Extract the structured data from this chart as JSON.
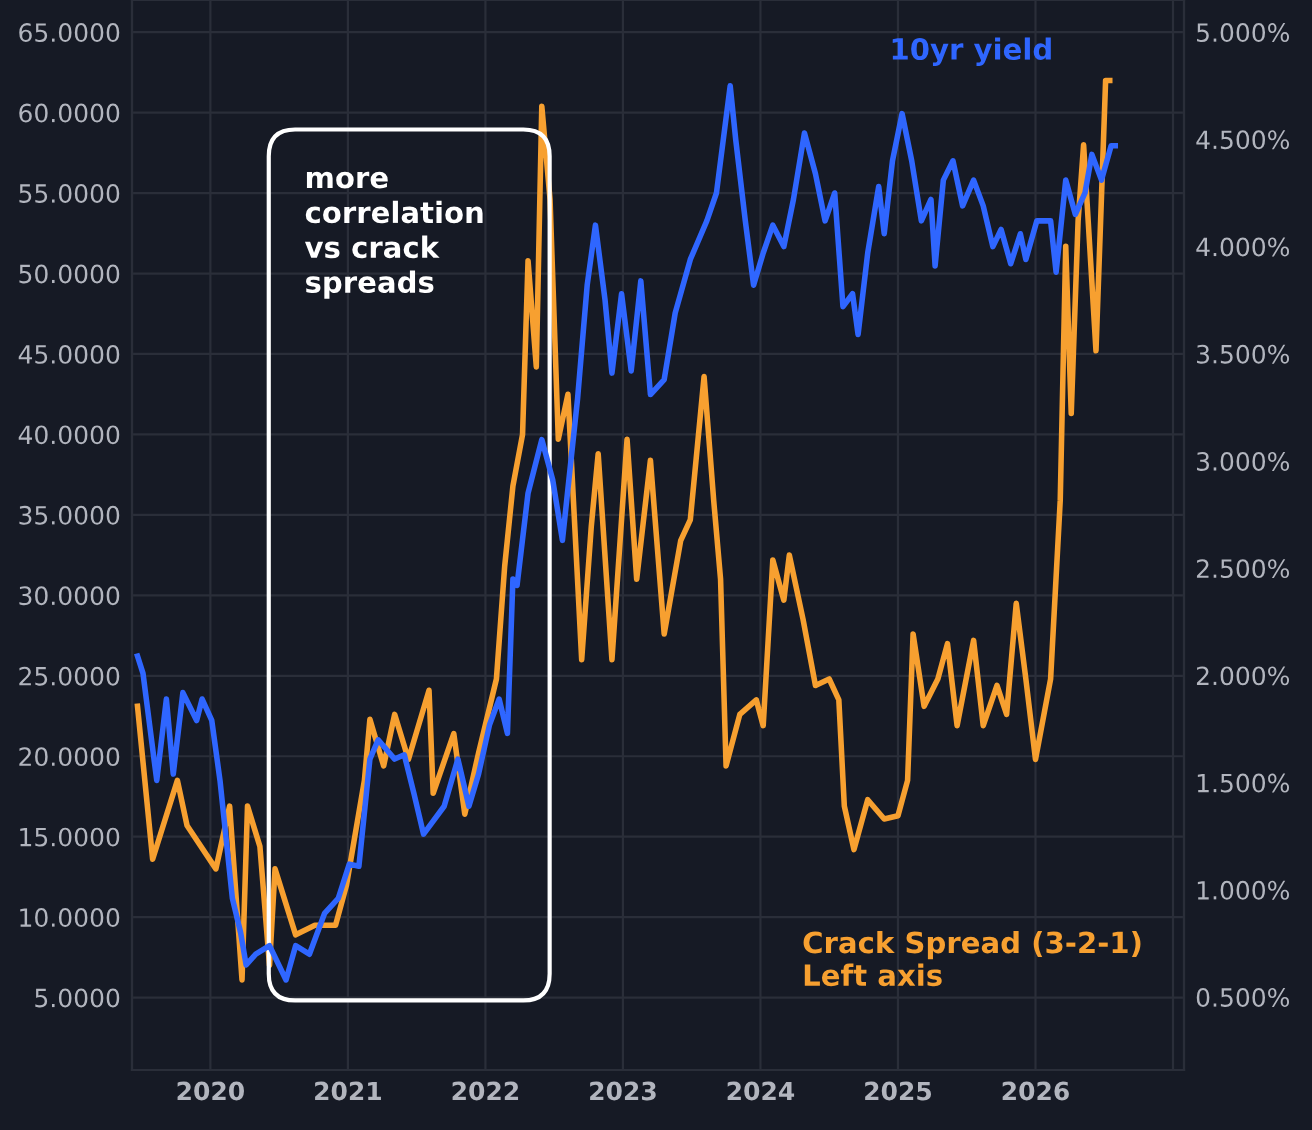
{
  "chart_data": {
    "type": "line",
    "xlim": [
      2019.43,
      2027.08
    ],
    "xticks": [
      2020,
      2021,
      2022,
      2023,
      2024,
      2025,
      2026,
      {
        "value": 2027,
        "label": null
      }
    ],
    "ylim": [
      0.5,
      67
    ],
    "yticks": [
      {
        "value": 5,
        "label": "5.0000"
      },
      {
        "value": 10,
        "label": "10.0000"
      },
      {
        "value": 15,
        "label": "15.0000"
      },
      {
        "value": 20,
        "label": "20.0000"
      },
      {
        "value": 25,
        "label": "25.0000"
      },
      {
        "value": 30,
        "label": "30.0000"
      },
      {
        "value": 35,
        "label": "35.0000"
      },
      {
        "value": 40,
        "label": "40.0000"
      },
      {
        "value": 45,
        "label": "45.0000"
      },
      {
        "value": 50,
        "label": "50.0000"
      },
      {
        "value": 55,
        "label": "55.0000"
      },
      {
        "value": 60,
        "label": "60.0000"
      },
      {
        "value": 65,
        "label": "65.0000"
      }
    ],
    "y2lim": [
      0.16,
      5.15
    ],
    "y2ticks": [
      {
        "value": 0.5,
        "label": "0.500%"
      },
      {
        "value": 1.0,
        "label": "1.000%"
      },
      {
        "value": 1.5,
        "label": "1.500%"
      },
      {
        "value": 2.0,
        "label": "2.000%"
      },
      {
        "value": 2.5,
        "label": "2.500%"
      },
      {
        "value": 3.0,
        "label": "3.000%"
      },
      {
        "value": 3.5,
        "label": "3.500%"
      },
      {
        "value": 4.0,
        "label": "4.000%"
      },
      {
        "value": 4.5,
        "label": "4.500%"
      },
      {
        "value": 5.0,
        "label": "5.000%"
      }
    ],
    "grid": true,
    "annotations": [
      "more\ncorrelation\nvs crack\nspreads"
    ],
    "series": [
      {
        "name": "Crack Spread (3-2-1)\nLeft axis",
        "color": "#f7a030",
        "axis": "y",
        "x": [
          2019.47,
          2019.58,
          2019.76,
          2019.83,
          2020.04,
          2020.14,
          2020.23,
          2020.27,
          2020.36,
          2020.43,
          2020.47,
          2020.62,
          2020.76,
          2020.91,
          2020.99,
          2021.12,
          2021.16,
          2021.26,
          2021.34,
          2021.44,
          2021.59,
          2021.62,
          2021.77,
          2021.85,
          2021.95,
          2022.08,
          2022.14,
          2022.2,
          2022.27,
          2022.31,
          2022.37,
          2022.41,
          2022.47,
          2022.53,
          2022.6,
          2022.7,
          2022.77,
          2022.82,
          2022.92,
          2023.03,
          2023.1,
          2023.2,
          2023.3,
          2023.42,
          2023.49,
          2023.59,
          2023.66,
          2023.71,
          2023.75,
          2023.85,
          2023.97,
          2024.02,
          2024.09,
          2024.17,
          2024.21,
          2024.31,
          2024.4,
          2024.5,
          2024.57,
          2024.61,
          2024.68,
          2024.78,
          2024.9,
          2025.0,
          2025.07,
          2025.11,
          2025.19,
          2025.29,
          2025.36,
          2025.43,
          2025.55,
          2025.62,
          2025.72,
          2025.79,
          2025.86,
          2025.93,
          2026.0,
          2026.11,
          2026.18,
          2026.22,
          2026.26,
          2026.31,
          2026.35,
          2026.44,
          2026.51,
          2026.54
        ],
        "values": [
          23.1,
          13.6,
          18.5,
          15.7,
          13,
          16.9,
          6.1,
          16.9,
          14.4,
          7,
          13,
          8.9,
          9.5,
          9.5,
          12,
          18.5,
          22.3,
          19.4,
          22.6,
          19.8,
          24.1,
          17.7,
          21.4,
          16.4,
          20.2,
          24.8,
          31.8,
          36.8,
          40,
          50.8,
          44.2,
          60.4,
          54.6,
          39.7,
          42.5,
          26,
          34.3,
          38.8,
          26,
          39.7,
          31,
          38.4,
          27.6,
          33.4,
          34.7,
          43.6,
          35.9,
          31,
          19.4,
          22.6,
          23.5,
          21.9,
          32.2,
          29.7,
          32.5,
          28.5,
          24.4,
          24.8,
          23.5,
          16.9,
          14.2,
          17.3,
          16.1,
          16.3,
          18.5,
          27.6,
          23.1,
          24.8,
          27,
          21.9,
          27.2,
          21.9,
          24.4,
          22.6,
          29.5,
          24.8,
          19.8,
          24.8,
          35.9,
          51.7,
          41.3,
          53.3,
          58,
          45.2,
          62,
          62
        ]
      },
      {
        "name": "10yr yield",
        "color": "#2f66ff",
        "axis": "y2",
        "x": [
          2019.47,
          2019.51,
          2019.61,
          2019.68,
          2019.73,
          2019.8,
          2019.9,
          2019.94,
          2020.01,
          2020.07,
          2020.16,
          2020.22,
          2020.26,
          2020.33,
          2020.43,
          2020.55,
          2020.62,
          2020.72,
          2020.83,
          2020.93,
          2021.01,
          2021.08,
          2021.16,
          2021.22,
          2021.34,
          2021.41,
          2021.48,
          2021.55,
          2021.7,
          2021.8,
          2021.88,
          2021.95,
          2022.03,
          2022.1,
          2022.16,
          2022.2,
          2022.23,
          2022.31,
          2022.41,
          2022.49,
          2022.56,
          2022.67,
          2022.74,
          2022.8,
          2022.87,
          2022.92,
          2022.99,
          2023.06,
          2023.13,
          2023.2,
          2023.3,
          2023.38,
          2023.49,
          2023.61,
          2023.68,
          2023.78,
          2023.82,
          2023.89,
          2023.95,
          2024.02,
          2024.09,
          2024.17,
          2024.24,
          2024.32,
          2024.4,
          2024.47,
          2024.54,
          2024.6,
          2024.67,
          2024.71,
          2024.78,
          2024.86,
          2024.9,
          2024.96,
          2025.03,
          2025.1,
          2025.17,
          2025.24,
          2025.27,
          2025.33,
          2025.4,
          2025.47,
          2025.55,
          2025.62,
          2025.69,
          2025.75,
          2025.82,
          2025.89,
          2025.93,
          2026.01,
          2026.11,
          2026.15,
          2026.22,
          2026.29,
          2026.36,
          2026.41,
          2026.48,
          2026.55,
          2026.58
        ],
        "values": [
          2.09,
          2.01,
          1.51,
          1.89,
          1.54,
          1.92,
          1.79,
          1.89,
          1.79,
          1.51,
          0.96,
          0.8,
          0.65,
          0.7,
          0.74,
          0.58,
          0.74,
          0.7,
          0.89,
          0.96,
          1.12,
          1.11,
          1.61,
          1.7,
          1.61,
          1.63,
          1.45,
          1.26,
          1.39,
          1.61,
          1.39,
          1.54,
          1.77,
          1.89,
          1.73,
          2.45,
          2.42,
          2.85,
          3.1,
          2.91,
          2.63,
          3.29,
          3.82,
          4.1,
          3.75,
          3.41,
          3.78,
          3.42,
          3.84,
          3.31,
          3.38,
          3.69,
          3.94,
          4.12,
          4.25,
          4.75,
          4.5,
          4.12,
          3.82,
          3.97,
          4.1,
          4.0,
          4.22,
          4.53,
          4.34,
          4.12,
          4.25,
          3.72,
          3.78,
          3.59,
          3.97,
          4.28,
          4.06,
          4.4,
          4.62,
          4.4,
          4.12,
          4.22,
          3.91,
          4.31,
          4.4,
          4.19,
          4.31,
          4.19,
          4.0,
          4.08,
          3.92,
          4.06,
          3.94,
          4.12,
          4.12,
          3.88,
          4.31,
          4.15,
          4.25,
          4.43,
          4.31,
          4.47,
          4.47
        ]
      }
    ]
  }
}
